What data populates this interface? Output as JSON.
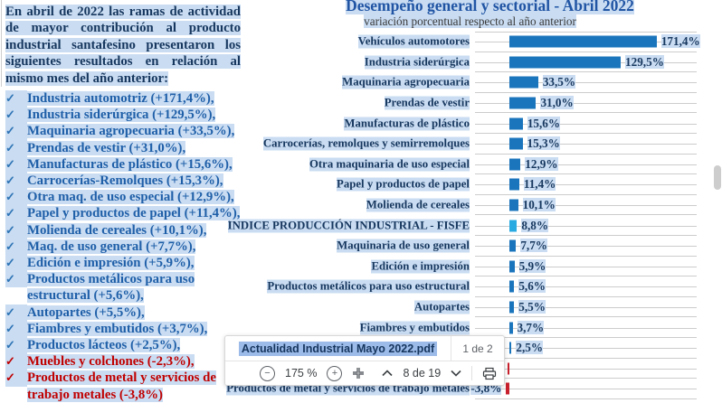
{
  "document": {
    "check_glyph": "✓",
    "intro": "En abril de 2022 las ramas de actividad de mayor contribución al producto industrial santafesino presentaron los siguientes resultados en relación al mismo mes del año anterior:",
    "items": [
      {
        "text": "Industria automotriz (+171,4%),",
        "negative": false
      },
      {
        "text": "Industria siderúrgica (+129,5%),",
        "negative": false
      },
      {
        "text": "Maquinaria agropecuaria (+33,5%),",
        "negative": false
      },
      {
        "text": "Prendas de vestir (+31,0%),",
        "negative": false
      },
      {
        "text": "Manufacturas de plástico (+15,6%),",
        "negative": false
      },
      {
        "text": "Carrocerías-Remolques (+15,3%),",
        "negative": false
      },
      {
        "text": "Otra maq. de uso especial (+12,9%),",
        "negative": false
      },
      {
        "text": "Papel y productos de papel (+11,4%),",
        "negative": false
      },
      {
        "text": "Molienda de cereales (+10,1%),",
        "negative": false
      },
      {
        "text": "Maq. de uso general (+7,7%),",
        "negative": false
      },
      {
        "text": "Edición e impresión (+5,9%),",
        "negative": false
      },
      {
        "text": "Productos metálicos para uso estructural (+5,6%),",
        "negative": false
      },
      {
        "text": "Autopartes (+5,5%),",
        "negative": false
      },
      {
        "text": "Fiambres y embutidos (+3,7%),",
        "negative": false
      },
      {
        "text": "Productos lácteos (+2,5%),",
        "negative": false
      },
      {
        "text": "Muebles y colchones (-2,3%),",
        "negative": true
      },
      {
        "text": "Productos de metal y servicios de trabajo metales (-3,8%)",
        "negative": true
      }
    ]
  },
  "chart_data": {
    "type": "bar",
    "orientation": "horizontal",
    "title": "Desempeño general y sectorial - Abril 2022",
    "subtitle": "variación porcentual respecto al año anterior",
    "categories": [
      "Vehículos automotores",
      "Industria siderúrgica",
      "Maquinaria agropecuaria",
      "Prendas de vestir",
      "Manufacturas de plástico",
      "Carrocerías, remolques y semirremolques",
      "Otra maquinaria de uso especial",
      "Papel y productos de papel",
      "Molienda de cereales",
      "ÍNDICE PRODUCCIÓN INDUSTRIAL - FISFE",
      "Maquinaria de uso general",
      "Edición e impresión",
      "Productos metálicos para uso estructural",
      "Autopartes",
      "Fiambres y embutidos",
      "Productos lácteos",
      "Muebles y colchones",
      "Productos de metal y servicios de trabajo metales"
    ],
    "values": [
      171.4,
      129.5,
      33.5,
      31.0,
      15.6,
      15.3,
      12.9,
      11.4,
      10.1,
      8.8,
      7.7,
      5.9,
      5.6,
      5.5,
      3.7,
      2.5,
      -2.3,
      -3.8
    ],
    "value_labels": [
      "171,4%",
      "129,5%",
      "33,5%",
      "31,0%",
      "15,6%",
      "15,3%",
      "12,9%",
      "11,4%",
      "10,1%",
      "8,8%",
      "7,7%",
      "5,9%",
      "5,6%",
      "5,5%",
      "3,7%",
      "2,5%",
      "-2,3%",
      "-3,8%"
    ],
    "highlight_category": "ÍNDICE PRODUCCIÓN INDUSTRIAL - FISFE",
    "xlim": [
      -10,
      185
    ],
    "grid": true,
    "legend": false
  },
  "colors": {
    "bar": "#1B75BC",
    "bar_highlight": "#29ABE2",
    "bar_negative": "#C8202C",
    "selection_highlight": "#C9DCF2",
    "filename_selection": "#9DBBE8",
    "text_navy": "#17375E",
    "list_blue": "#1F5FA8",
    "negative_red": "#C00000",
    "title_blue": "#2155A4"
  },
  "toolbar": {
    "filename": "Actualidad Industrial Mayo 2022.pdf",
    "match_count": "1 de 2",
    "zoom_out_label": "−",
    "zoom_level": "175 %",
    "zoom_in_label": "+",
    "page_indicator": "8 de 19"
  }
}
